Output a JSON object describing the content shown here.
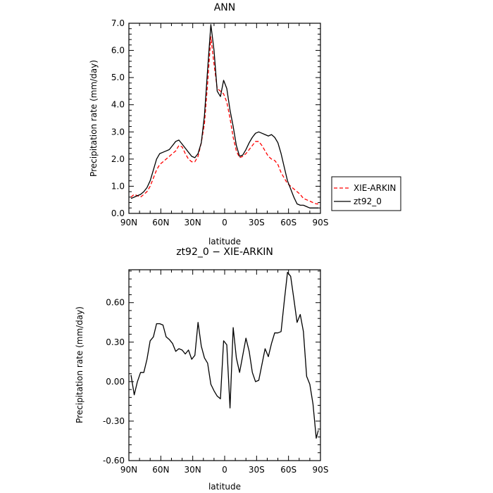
{
  "chart_data": [
    {
      "type": "line",
      "title": "ANN",
      "xlabel": "latitude",
      "ylabel": "Precipitation rate (mm/day)",
      "xlim": [
        90,
        -90
      ],
      "ylim": [
        0,
        7
      ],
      "x_ticks": [
        90,
        60,
        30,
        0,
        -30,
        -60,
        -90
      ],
      "x_tick_labels": [
        "90N",
        "60N",
        "30N",
        "0",
        "30S",
        "60S",
        "90S"
      ],
      "y_ticks": [
        0,
        1,
        2,
        3,
        4,
        5,
        6,
        7
      ],
      "y_tick_labels": [
        "0.0",
        "1.0",
        "2.0",
        "3.0",
        "4.0",
        "5.0",
        "6.0",
        "7.0"
      ],
      "legend_position": "outside-right",
      "series": [
        {
          "name": "XIE-ARKIN",
          "color": "#ff0000",
          "dash": "dashed",
          "x": [
            88,
            85,
            82,
            79,
            76,
            73,
            70,
            67,
            64,
            61,
            58,
            55,
            52,
            49,
            46,
            43,
            40,
            37,
            34,
            31,
            28,
            25,
            22,
            19,
            16,
            13,
            10,
            7,
            4,
            1,
            -2,
            -5,
            -8,
            -11,
            -14,
            -17,
            -20,
            -23,
            -26,
            -29,
            -32,
            -35,
            -38,
            -41,
            -44,
            -47,
            -50,
            -53,
            -56,
            -59,
            -62,
            -65,
            -68,
            -71,
            -74,
            -77,
            -80,
            -83,
            -86,
            -88
          ],
          "values": [
            0.6,
            0.7,
            0.65,
            0.6,
            0.7,
            0.8,
            1.0,
            1.3,
            1.6,
            1.8,
            1.9,
            2.0,
            2.1,
            2.2,
            2.3,
            2.5,
            2.45,
            2.2,
            2.0,
            1.9,
            1.9,
            2.1,
            2.6,
            3.3,
            4.8,
            6.5,
            5.5,
            4.6,
            4.5,
            4.4,
            4.1,
            3.5,
            2.8,
            2.3,
            2.05,
            2.1,
            2.2,
            2.35,
            2.5,
            2.65,
            2.65,
            2.5,
            2.3,
            2.1,
            2.0,
            1.95,
            1.8,
            1.5,
            1.3,
            1.1,
            1.0,
            0.9,
            0.8,
            0.7,
            0.55,
            0.5,
            0.45,
            0.4,
            0.35,
            0.35
          ]
        },
        {
          "name": "zt92_0",
          "color": "#000000",
          "dash": "solid",
          "x": [
            88,
            85,
            82,
            79,
            76,
            73,
            70,
            67,
            64,
            61,
            58,
            55,
            52,
            49,
            46,
            43,
            40,
            37,
            34,
            31,
            28,
            25,
            22,
            19,
            16,
            13,
            10,
            7,
            4,
            1,
            -2,
            -5,
            -8,
            -11,
            -14,
            -17,
            -20,
            -23,
            -26,
            -29,
            -32,
            -35,
            -38,
            -41,
            -44,
            -47,
            -50,
            -53,
            -56,
            -59,
            -62,
            -65,
            -68,
            -71,
            -74,
            -77,
            -80,
            -83,
            -86,
            -88
          ],
          "values": [
            0.55,
            0.6,
            0.65,
            0.7,
            0.8,
            0.95,
            1.2,
            1.6,
            2.0,
            2.2,
            2.25,
            2.3,
            2.35,
            2.5,
            2.65,
            2.7,
            2.55,
            2.4,
            2.25,
            2.1,
            2.05,
            2.2,
            2.6,
            3.6,
            5.3,
            6.95,
            6.0,
            4.5,
            4.3,
            4.9,
            4.6,
            3.8,
            3.2,
            2.5,
            2.1,
            2.15,
            2.35,
            2.6,
            2.8,
            2.95,
            3.0,
            2.95,
            2.9,
            2.85,
            2.9,
            2.8,
            2.6,
            2.2,
            1.7,
            1.2,
            0.9,
            0.6,
            0.35,
            0.3,
            0.3,
            0.25,
            0.2,
            0.2,
            0.2,
            0.2
          ]
        }
      ]
    },
    {
      "type": "line",
      "title": "zt92_0 − XIE-ARKIN",
      "xlabel": "latitude",
      "ylabel": "Precipitation rate (mm/day)",
      "xlim": [
        90,
        -90
      ],
      "ylim": [
        -0.6,
        0.85
      ],
      "x_ticks": [
        90,
        60,
        30,
        0,
        -30,
        -60,
        -90
      ],
      "x_tick_labels": [
        "90N",
        "60N",
        "30N",
        "0",
        "30S",
        "60S",
        "90S"
      ],
      "y_ticks": [
        -0.6,
        -0.3,
        0.0,
        0.3,
        0.6
      ],
      "y_tick_labels": [
        "-0.60",
        "-0.30",
        "0.00",
        "0.30",
        "0.60"
      ],
      "series": [
        {
          "color": "#000000",
          "dash": "solid",
          "x": [
            88,
            85,
            82,
            79,
            76,
            73,
            70,
            67,
            64,
            61,
            58,
            55,
            52,
            49,
            46,
            43,
            40,
            37,
            34,
            31,
            28,
            25,
            22,
            19,
            16,
            13,
            10,
            7,
            4,
            1,
            -2,
            -5,
            -8,
            -11,
            -14,
            -17,
            -20,
            -23,
            -26,
            -29,
            -32,
            -35,
            -38,
            -41,
            -44,
            -47,
            -50,
            -53,
            -56,
            -59,
            -62,
            -65,
            -68,
            -71,
            -74,
            -77,
            -80,
            -83,
            -86,
            -88
          ],
          "values": [
            0.05,
            -0.1,
            0.0,
            0.07,
            0.07,
            0.17,
            0.31,
            0.34,
            0.44,
            0.44,
            0.43,
            0.34,
            0.32,
            0.29,
            0.23,
            0.25,
            0.24,
            0.21,
            0.24,
            0.17,
            0.2,
            0.45,
            0.27,
            0.18,
            0.14,
            -0.02,
            -0.07,
            -0.11,
            -0.13,
            0.31,
            0.28,
            -0.2,
            0.41,
            0.18,
            0.07,
            0.2,
            0.33,
            0.23,
            0.07,
            0.0,
            0.01,
            0.13,
            0.25,
            0.19,
            0.29,
            0.37,
            0.37,
            0.38,
            0.61,
            0.83,
            0.8,
            0.63,
            0.45,
            0.51,
            0.38,
            0.04,
            -0.02,
            -0.17,
            -0.43,
            -0.37
          ]
        }
      ]
    }
  ]
}
